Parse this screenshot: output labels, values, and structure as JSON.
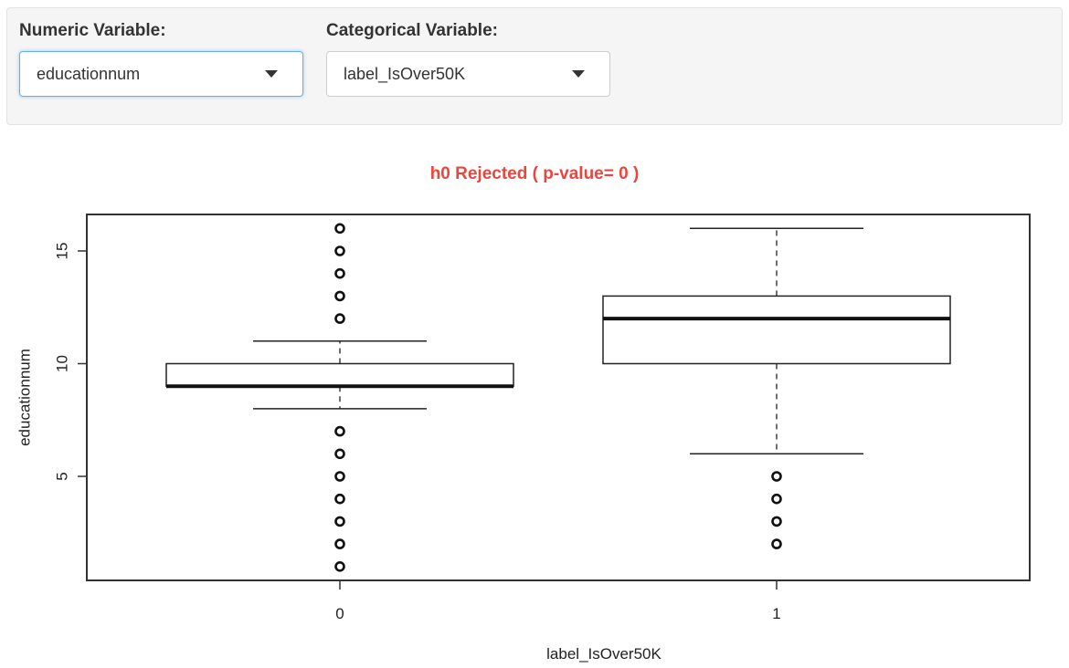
{
  "controls": {
    "numeric": {
      "label": "Numeric Variable:",
      "value": "educationnum"
    },
    "categorical": {
      "label": "Categorical Variable:",
      "value": "label_IsOver50K"
    }
  },
  "result_title": "h0 Rejected ( p-value= 0 )",
  "colors": {
    "title": "#e8473f",
    "focus_border": "#66afe9"
  },
  "chart_data": {
    "type": "boxplot",
    "xlabel": "label_IsOver50K",
    "ylabel": "educationnum",
    "y_ticks": [
      5,
      10,
      15
    ],
    "ylim": [
      0.5,
      16.5
    ],
    "categories": [
      "0",
      "1"
    ],
    "boxes": [
      {
        "category": "0",
        "whisker_low": 8,
        "q1": 9,
        "median": 9,
        "q3": 10,
        "whisker_high": 11,
        "outliers": [
          1,
          2,
          3,
          4,
          5,
          6,
          7,
          12,
          13,
          14,
          15,
          16
        ]
      },
      {
        "category": "1",
        "whisker_low": 6,
        "q1": 10,
        "median": 12,
        "q3": 13,
        "whisker_high": 16,
        "outliers": [
          2,
          3,
          4,
          5
        ]
      }
    ]
  }
}
